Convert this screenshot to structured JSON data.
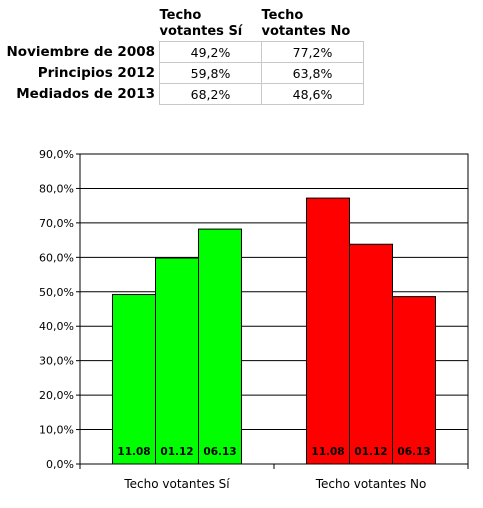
{
  "table": {
    "headers": [
      "Techo\nvotantes Sí",
      "Techo\nvotantes No"
    ],
    "rows": [
      {
        "label": "Noviembre de 2008",
        "values": [
          "49,2%",
          "77,2%"
        ]
      },
      {
        "label": "Principios 2012",
        "values": [
          "59,8%",
          "63,8%"
        ]
      },
      {
        "label": "Mediados de 2013",
        "values": [
          "68,2%",
          "48,6%"
        ]
      }
    ]
  },
  "chart_data": {
    "type": "bar",
    "categories": [
      "Techo votantes Sí",
      "Techo votantes No"
    ],
    "series": [
      {
        "label": "11.08",
        "values": [
          49.2,
          77.2
        ]
      },
      {
        "label": "01.12",
        "values": [
          59.8,
          63.8
        ]
      },
      {
        "label": "06.13",
        "values": [
          68.2,
          48.6
        ]
      }
    ],
    "category_colors": [
      "#00ff00",
      "#ff0000"
    ],
    "ylim": [
      0,
      90
    ],
    "y_ticks": [
      "0,0%",
      "10,0%",
      "20,0%",
      "30,0%",
      "40,0%",
      "50,0%",
      "60,0%",
      "70,0%",
      "80,0%",
      "90,0%"
    ],
    "grid": true,
    "title": "",
    "xlabel": "",
    "ylabel": ""
  }
}
